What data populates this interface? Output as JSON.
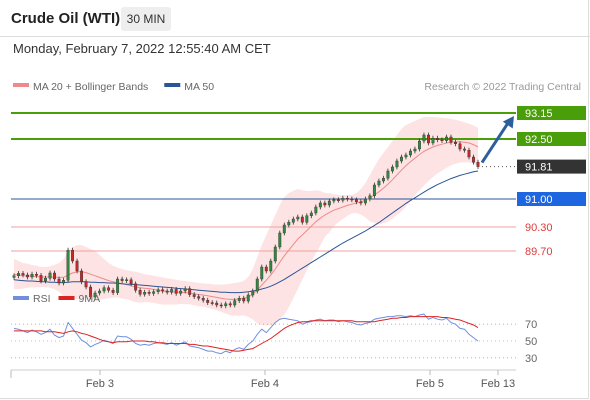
{
  "header": {
    "title": "Crude Oil (WTI)",
    "timeframe": "30 MIN",
    "datetime": "Monday, February 7, 2022 12:55:40 AM CET"
  },
  "colors": {
    "resistance": "#4a9e0a",
    "current": "#333333",
    "ma50": "#2c5597",
    "support": "#e03b3b",
    "bollinger_fill": "#fde3e3",
    "ma20": "#f08a8a",
    "up_candle": "#2e8b3e",
    "down_candle": "#c62828",
    "arrow": "#2c5f9e",
    "rsi": "#6f8fdd",
    "rsi_ma": "#dd2222"
  },
  "chart_data": [
    {
      "type": "candlestick",
      "legend": [
        {
          "name": "MA 20 + Bollinger Bands",
          "color": "#f08a8a"
        },
        {
          "name": "MA 50",
          "color": "#2c5597"
        }
      ],
      "source": "Research © 2022 Trading Central",
      "x_tick_labels": [
        "Feb 3",
        "Feb 4",
        "Feb 5",
        "Feb 13"
      ],
      "ylim": [
        89.0,
        93.5
      ],
      "levels": [
        {
          "label": "93.15",
          "value": 93.15,
          "kind": "resistance"
        },
        {
          "label": "92.50",
          "value": 92.5,
          "kind": "resistance"
        },
        {
          "label": "91.81",
          "value": 91.81,
          "kind": "current"
        },
        {
          "label": "91.00",
          "value": 91.0,
          "kind": "ma50"
        },
        {
          "label": "90.30",
          "value": 90.3,
          "kind": "support"
        },
        {
          "label": "89.70",
          "value": 89.7,
          "kind": "support"
        }
      ],
      "close": [
        89.08,
        89.14,
        89.1,
        89.05,
        89.12,
        89.09,
        88.95,
        89.02,
        89.15,
        89.0,
        88.9,
        88.97,
        89.72,
        89.45,
        89.2,
        88.93,
        88.8,
        88.55,
        88.65,
        88.7,
        88.78,
        88.72,
        88.66,
        89.0,
        88.96,
        88.98,
        88.88,
        88.72,
        88.62,
        88.67,
        88.64,
        88.68,
        88.73,
        88.7,
        88.67,
        88.74,
        88.64,
        88.7,
        88.76,
        88.61,
        88.56,
        88.52,
        88.47,
        88.41,
        88.4,
        88.35,
        88.33,
        88.38,
        88.35,
        88.46,
        88.52,
        88.45,
        88.6,
        88.7,
        89.0,
        89.3,
        89.2,
        89.45,
        89.8,
        90.15,
        90.35,
        90.42,
        90.5,
        90.55,
        90.42,
        90.58,
        90.65,
        90.8,
        90.9,
        90.85,
        90.95,
        90.98,
        90.97,
        91.02,
        91.0,
        90.98,
        90.93,
        90.9,
        91.0,
        91.08,
        91.35,
        91.45,
        91.52,
        91.7,
        91.8,
        91.95,
        92.05,
        92.1,
        92.2,
        92.25,
        92.45,
        92.6,
        92.4,
        92.52,
        92.48,
        92.46,
        92.55,
        92.42,
        92.38,
        92.25,
        92.22,
        92.05,
        91.92,
        91.81
      ],
      "ma20": [
        89.12,
        89.1,
        89.08,
        89.08,
        89.07,
        89.06,
        89.05,
        89.05,
        89.05,
        89.05,
        89.04,
        89.04,
        89.1,
        89.15,
        89.18,
        89.18,
        89.16,
        89.12,
        89.08,
        89.04,
        89.0,
        88.96,
        88.93,
        88.91,
        88.88,
        88.86,
        88.83,
        88.8,
        88.78,
        88.77,
        88.76,
        88.74,
        88.72,
        88.7,
        88.69,
        88.68,
        88.67,
        88.67,
        88.66,
        88.65,
        88.63,
        88.61,
        88.6,
        88.58,
        88.56,
        88.54,
        88.52,
        88.5,
        88.49,
        88.49,
        88.5,
        88.52,
        88.55,
        88.62,
        88.72,
        88.85,
        88.97,
        89.1,
        89.25,
        89.42,
        89.58,
        89.72,
        89.86,
        90.0,
        90.1,
        90.21,
        90.32,
        90.43,
        90.52,
        90.6,
        90.66,
        90.72,
        90.76,
        90.8,
        90.84,
        90.87,
        90.9,
        90.93,
        90.97,
        91.02,
        91.1,
        91.18,
        91.27,
        91.37,
        91.48,
        91.6,
        91.72,
        91.83,
        91.93,
        92.02,
        92.11,
        92.19,
        92.25,
        92.3,
        92.34,
        92.37,
        92.4,
        92.42,
        92.43,
        92.43,
        92.42,
        92.4,
        92.36,
        92.3
      ],
      "bb_upper": [
        89.5,
        89.45,
        89.4,
        89.38,
        89.35,
        89.33,
        89.3,
        89.3,
        89.32,
        89.35,
        89.4,
        89.5,
        89.7,
        89.8,
        89.85,
        89.85,
        89.8,
        89.75,
        89.7,
        89.6,
        89.5,
        89.4,
        89.33,
        89.28,
        89.25,
        89.22,
        89.2,
        89.18,
        89.15,
        89.12,
        89.1,
        89.08,
        89.06,
        89.04,
        89.02,
        89.0,
        88.98,
        88.96,
        88.95,
        88.93,
        88.92,
        88.9,
        88.89,
        88.88,
        88.87,
        88.86,
        88.86,
        88.87,
        88.88,
        88.9,
        88.92,
        88.95,
        89.05,
        89.25,
        89.55,
        89.85,
        90.1,
        90.35,
        90.6,
        90.85,
        91.05,
        91.15,
        91.2,
        91.25,
        91.22,
        91.2,
        91.2,
        91.22,
        91.2,
        91.15,
        91.15,
        91.12,
        91.1,
        91.1,
        91.1,
        91.1,
        91.15,
        91.25,
        91.4,
        91.6,
        91.8,
        92.0,
        92.15,
        92.3,
        92.45,
        92.6,
        92.75,
        92.85,
        92.9,
        92.95,
        93.0,
        93.05,
        93.05,
        93.05,
        93.04,
        93.03,
        93.02,
        93.0,
        92.98,
        92.95,
        92.92,
        92.88,
        92.84,
        92.78
      ],
      "bb_lower": [
        88.75,
        88.75,
        88.76,
        88.78,
        88.79,
        88.79,
        88.8,
        88.8,
        88.78,
        88.75,
        88.68,
        88.58,
        88.5,
        88.5,
        88.51,
        88.51,
        88.52,
        88.49,
        88.46,
        88.48,
        88.5,
        88.52,
        88.53,
        88.54,
        88.51,
        88.5,
        88.46,
        88.42,
        88.41,
        88.42,
        88.42,
        88.4,
        88.38,
        88.36,
        88.36,
        88.36,
        88.36,
        88.38,
        88.37,
        88.37,
        88.34,
        88.32,
        88.31,
        88.28,
        88.25,
        88.22,
        88.18,
        88.13,
        88.1,
        88.08,
        88.08,
        88.09,
        88.05,
        87.99,
        87.89,
        87.85,
        87.84,
        87.85,
        87.9,
        87.99,
        88.11,
        88.29,
        88.52,
        88.75,
        88.98,
        89.22,
        89.44,
        89.64,
        89.84,
        90.05,
        90.17,
        90.32,
        90.42,
        90.5,
        90.58,
        90.64,
        90.65,
        90.61,
        90.54,
        90.44,
        90.4,
        90.36,
        90.39,
        90.44,
        90.51,
        90.6,
        90.69,
        90.81,
        90.96,
        91.09,
        91.22,
        91.33,
        91.45,
        91.55,
        91.64,
        91.71,
        91.78,
        91.84,
        91.88,
        91.91,
        91.92,
        91.92,
        91.88,
        91.82
      ],
      "ma50": [
        88.98,
        88.97,
        88.96,
        88.95,
        88.95,
        88.94,
        88.93,
        88.93,
        88.92,
        88.92,
        88.91,
        88.91,
        88.92,
        88.93,
        88.93,
        88.93,
        88.93,
        88.92,
        88.92,
        88.91,
        88.91,
        88.9,
        88.9,
        88.89,
        88.88,
        88.87,
        88.87,
        88.86,
        88.85,
        88.84,
        88.83,
        88.82,
        88.81,
        88.8,
        88.79,
        88.78,
        88.77,
        88.76,
        88.75,
        88.74,
        88.73,
        88.72,
        88.71,
        88.7,
        88.69,
        88.68,
        88.67,
        88.67,
        88.66,
        88.66,
        88.66,
        88.67,
        88.68,
        88.7,
        88.72,
        88.75,
        88.78,
        88.82,
        88.87,
        88.93,
        88.99,
        89.06,
        89.13,
        89.2,
        89.27,
        89.34,
        89.41,
        89.48,
        89.55,
        89.62,
        89.69,
        89.76,
        89.83,
        89.9,
        89.96,
        90.02,
        90.08,
        90.14,
        90.2,
        90.27,
        90.34,
        90.41,
        90.49,
        90.57,
        90.65,
        90.73,
        90.81,
        90.89,
        90.96,
        91.03,
        91.1,
        91.17,
        91.24,
        91.3,
        91.36,
        91.41,
        91.46,
        91.51,
        91.55,
        91.59,
        91.62,
        91.65,
        91.68,
        91.7
      ]
    },
    {
      "type": "line",
      "legend": [
        {
          "name": "RSI",
          "color": "#6f8fdd"
        },
        {
          "name": "9MA",
          "color": "#dd2222"
        }
      ],
      "y_tick_labels": [
        "70",
        "50",
        "30"
      ],
      "ylim": [
        20,
        80
      ],
      "series": [
        {
          "name": "RSI",
          "values": [
            65,
            64,
            62,
            60,
            63,
            61,
            58,
            60,
            64,
            57,
            54,
            56,
            72,
            65,
            58,
            51,
            48,
            43,
            46,
            48,
            51,
            49,
            47,
            56,
            55,
            55,
            52,
            47,
            45,
            46,
            45,
            47,
            48,
            47,
            46,
            48,
            45,
            47,
            49,
            44,
            43,
            42,
            40,
            38,
            38,
            36,
            35,
            38,
            36,
            40,
            42,
            40,
            46,
            50,
            58,
            64,
            60,
            66,
            72,
            76,
            77,
            76,
            75,
            74,
            70,
            72,
            73,
            75,
            76,
            74,
            75,
            75,
            73,
            74,
            73,
            72,
            70,
            69,
            71,
            72,
            76,
            77,
            78,
            79,
            79,
            80,
            80,
            79,
            80,
            79,
            81,
            82,
            76,
            78,
            76,
            75,
            77,
            72,
            70,
            65,
            64,
            58,
            54,
            50
          ]
        },
        {
          "name": "9MA",
          "values": [
            62,
            62,
            62,
            62,
            62,
            62,
            62,
            61,
            61,
            61,
            60,
            59,
            61,
            62,
            61,
            59,
            58,
            56,
            54,
            52,
            50,
            49,
            48,
            49,
            49,
            49,
            50,
            50,
            50,
            50,
            49,
            49,
            48,
            48,
            47,
            47,
            47,
            47,
            47,
            46,
            46,
            45,
            44,
            44,
            43,
            42,
            41,
            40,
            39,
            38,
            38,
            39,
            40,
            41,
            44,
            47,
            50,
            53,
            57,
            61,
            65,
            68,
            70,
            72,
            73,
            73,
            74,
            74,
            74,
            74,
            74,
            74,
            74,
            74,
            74,
            74,
            73,
            73,
            73,
            73,
            73,
            74,
            75,
            76,
            77,
            77,
            78,
            78,
            79,
            79,
            79,
            79,
            79,
            79,
            79,
            78,
            78,
            77,
            76,
            75,
            73,
            71,
            69,
            66
          ]
        }
      ]
    }
  ]
}
